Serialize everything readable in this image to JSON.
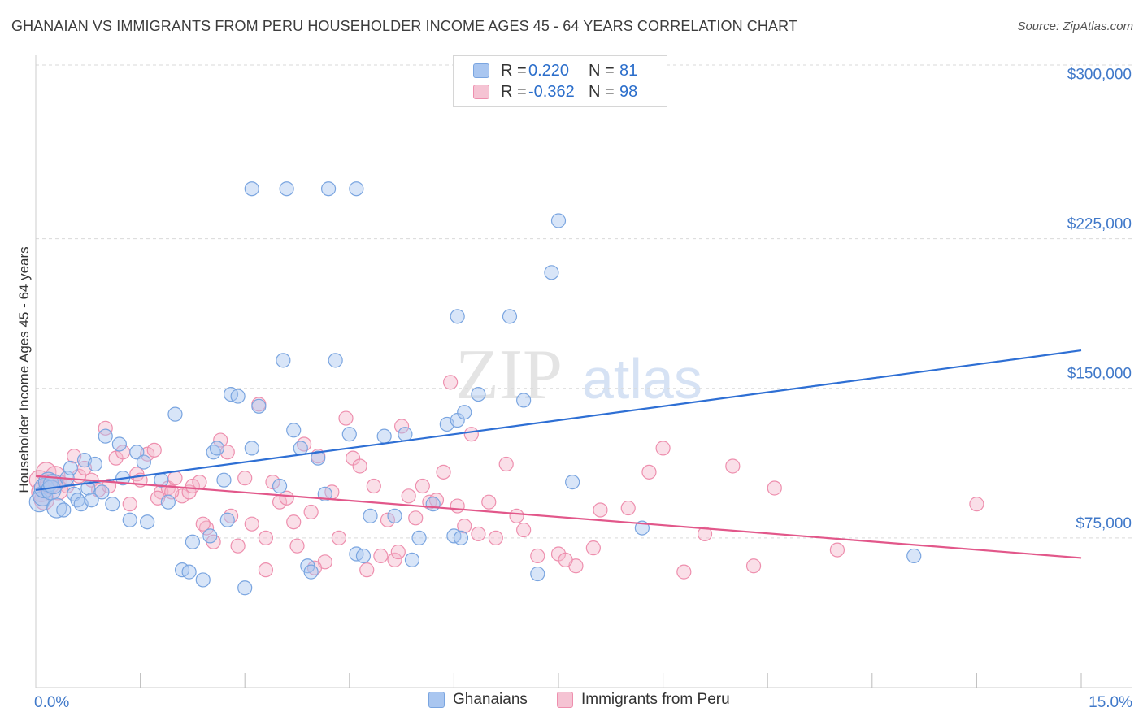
{
  "title": "GHANAIAN VS IMMIGRANTS FROM PERU HOUSEHOLDER INCOME AGES 45 - 64 YEARS CORRELATION CHART",
  "source": "Source: ZipAtlas.com",
  "watermark": {
    "zip": "ZIP",
    "atlas": "atlas"
  },
  "colors": {
    "blue_fill": "#a9c6f0",
    "blue_stroke": "#7aa5e0",
    "blue_line": "#2e6fd4",
    "pink_fill": "#f5b8cc",
    "pink_stroke": "#ee8fae",
    "pink_line": "#e2578a",
    "axis_text": "#3f78c9",
    "grid": "#d9d9d9"
  },
  "legend": {
    "rows": [
      {
        "r_label": "R =",
        "r_value": "0.220",
        "n_label": "N =",
        "n_value": "81"
      },
      {
        "r_label": "R =",
        "r_value": "-0.362",
        "n_label": "N =",
        "n_value": "98"
      }
    ]
  },
  "bottom_legend": {
    "series1": "Ghanaians",
    "series2": "Immigrants from Peru"
  },
  "chart_data": {
    "type": "scatter",
    "title": "GHANAIAN VS IMMIGRANTS FROM PERU HOUSEHOLDER INCOME AGES 45 - 64 YEARS CORRELATION CHART",
    "xlabel": "",
    "ylabel": "Householder Income Ages 45 - 64 years",
    "xlim": [
      0,
      15
    ],
    "ylim": [
      0,
      312000
    ],
    "x_tick_labels": [
      "0.0%",
      "15.0%"
    ],
    "y_ticks": [
      75000,
      150000,
      225000,
      300000
    ],
    "y_tick_labels": [
      "$75,000",
      "$150,000",
      "$225,000",
      "$300,000"
    ],
    "grid": "horizontal dashed",
    "legend_placement": "top-center",
    "series": [
      {
        "name": "Ghanaians",
        "color": "#a9c6f0",
        "trend": {
          "x": [
            0.0,
            15.0
          ],
          "y": [
            99000,
            169000
          ]
        },
        "points": [
          [
            0.05,
            93000
          ],
          [
            0.1,
            96000
          ],
          [
            0.12,
            100000
          ],
          [
            0.18,
            103000
          ],
          [
            0.22,
            99000
          ],
          [
            0.3,
            90000
          ],
          [
            0.25,
            102000
          ],
          [
            0.45,
            105000
          ],
          [
            0.5,
            110000
          ],
          [
            0.55,
            97000
          ],
          [
            0.6,
            94000
          ],
          [
            0.65,
            92000
          ],
          [
            0.7,
            114000
          ],
          [
            0.75,
            100000
          ],
          [
            0.85,
            112000
          ],
          [
            0.95,
            98000
          ],
          [
            1.0,
            126000
          ],
          [
            1.1,
            92000
          ],
          [
            1.2,
            122000
          ],
          [
            1.25,
            105000
          ],
          [
            1.35,
            84000
          ],
          [
            1.45,
            118000
          ],
          [
            1.55,
            113000
          ],
          [
            1.6,
            83000
          ],
          [
            1.8,
            104000
          ],
          [
            1.9,
            93000
          ],
          [
            2.0,
            137000
          ],
          [
            2.1,
            59000
          ],
          [
            2.2,
            58000
          ],
          [
            2.25,
            73000
          ],
          [
            2.4,
            54000
          ],
          [
            2.5,
            76000
          ],
          [
            2.55,
            118000
          ],
          [
            2.6,
            120000
          ],
          [
            2.7,
            104000
          ],
          [
            2.75,
            84000
          ],
          [
            2.8,
            147000
          ],
          [
            2.9,
            146000
          ],
          [
            3.0,
            50000
          ],
          [
            3.1,
            120000
          ],
          [
            3.2,
            141000
          ],
          [
            3.5,
            101000
          ],
          [
            3.7,
            129000
          ],
          [
            3.8,
            120000
          ],
          [
            3.9,
            61000
          ],
          [
            3.95,
            58000
          ],
          [
            4.05,
            115000
          ],
          [
            4.15,
            97000
          ],
          [
            4.5,
            127000
          ],
          [
            4.6,
            67000
          ],
          [
            4.7,
            66000
          ],
          [
            4.8,
            86000
          ],
          [
            5.0,
            126000
          ],
          [
            5.15,
            86000
          ],
          [
            5.3,
            127000
          ],
          [
            5.4,
            64000
          ],
          [
            5.5,
            75000
          ],
          [
            5.7,
            92000
          ],
          [
            5.9,
            132000
          ],
          [
            6.0,
            76000
          ],
          [
            6.05,
            134000
          ],
          [
            6.1,
            75000
          ],
          [
            6.15,
            138000
          ],
          [
            6.35,
            147000
          ],
          [
            7.0,
            144000
          ],
          [
            7.2,
            57000
          ],
          [
            7.5,
            234000
          ],
          [
            7.7,
            103000
          ],
          [
            3.1,
            250000
          ],
          [
            3.6,
            250000
          ],
          [
            4.2,
            250000
          ],
          [
            4.6,
            250000
          ],
          [
            7.4,
            208000
          ],
          [
            6.8,
            186000
          ],
          [
            6.05,
            186000
          ],
          [
            4.3,
            164000
          ],
          [
            8.7,
            80000
          ],
          [
            3.55,
            164000
          ],
          [
            12.6,
            66000
          ],
          [
            0.4,
            89000
          ],
          [
            0.8,
            94000
          ]
        ]
      },
      {
        "name": "Immigrants from Peru",
        "color": "#f5b8cc",
        "trend": {
          "x": [
            0.0,
            15.0
          ],
          "y": [
            106000,
            65000
          ]
        },
        "points": [
          [
            0.05,
            104000
          ],
          [
            0.08,
            98000
          ],
          [
            0.12,
            94000
          ],
          [
            0.15,
            108000
          ],
          [
            0.2,
            102000
          ],
          [
            0.28,
            106000
          ],
          [
            0.35,
            103000
          ],
          [
            0.45,
            101000
          ],
          [
            0.55,
            116000
          ],
          [
            0.62,
            106000
          ],
          [
            0.7,
            110000
          ],
          [
            0.8,
            104000
          ],
          [
            0.9,
            99000
          ],
          [
            1.0,
            130000
          ],
          [
            1.05,
            101000
          ],
          [
            1.15,
            115000
          ],
          [
            1.25,
            118000
          ],
          [
            1.35,
            92000
          ],
          [
            1.45,
            107000
          ],
          [
            1.5,
            104000
          ],
          [
            1.6,
            117000
          ],
          [
            1.7,
            119000
          ],
          [
            1.8,
            98000
          ],
          [
            1.9,
            100000
          ],
          [
            2.0,
            105000
          ],
          [
            2.1,
            96000
          ],
          [
            2.2,
            98000
          ],
          [
            2.25,
            101000
          ],
          [
            2.35,
            103000
          ],
          [
            2.45,
            80000
          ],
          [
            2.55,
            73000
          ],
          [
            2.65,
            124000
          ],
          [
            2.75,
            118000
          ],
          [
            2.8,
            86000
          ],
          [
            2.9,
            71000
          ],
          [
            3.0,
            105000
          ],
          [
            3.1,
            82000
          ],
          [
            3.2,
            142000
          ],
          [
            3.3,
            75000
          ],
          [
            3.4,
            103000
          ],
          [
            3.5,
            93000
          ],
          [
            3.6,
            95000
          ],
          [
            3.7,
            83000
          ],
          [
            3.75,
            71000
          ],
          [
            3.85,
            122000
          ],
          [
            3.95,
            88000
          ],
          [
            4.05,
            116000
          ],
          [
            4.15,
            63000
          ],
          [
            4.25,
            98000
          ],
          [
            4.35,
            75000
          ],
          [
            4.45,
            135000
          ],
          [
            4.55,
            115000
          ],
          [
            4.65,
            111000
          ],
          [
            4.75,
            59000
          ],
          [
            4.85,
            101000
          ],
          [
            4.95,
            66000
          ],
          [
            5.05,
            84000
          ],
          [
            5.15,
            64000
          ],
          [
            5.25,
            131000
          ],
          [
            5.35,
            96000
          ],
          [
            5.45,
            85000
          ],
          [
            5.55,
            101000
          ],
          [
            5.65,
            93000
          ],
          [
            5.75,
            94000
          ],
          [
            5.85,
            108000
          ],
          [
            5.95,
            153000
          ],
          [
            6.05,
            91000
          ],
          [
            6.15,
            81000
          ],
          [
            6.25,
            127000
          ],
          [
            6.35,
            77000
          ],
          [
            6.5,
            93000
          ],
          [
            6.6,
            75000
          ],
          [
            6.75,
            112000
          ],
          [
            6.9,
            86000
          ],
          [
            7.0,
            79000
          ],
          [
            7.2,
            66000
          ],
          [
            7.5,
            67000
          ],
          [
            7.75,
            61000
          ],
          [
            8.0,
            70000
          ],
          [
            8.1,
            89000
          ],
          [
            8.5,
            90000
          ],
          [
            8.8,
            108000
          ],
          [
            9.0,
            120000
          ],
          [
            9.3,
            58000
          ],
          [
            9.6,
            77000
          ],
          [
            10.0,
            111000
          ],
          [
            10.3,
            61000
          ],
          [
            10.6,
            100000
          ],
          [
            11.5,
            69000
          ],
          [
            13.5,
            92000
          ],
          [
            4.0,
            60000
          ],
          [
            3.3,
            59000
          ],
          [
            2.4,
            82000
          ],
          [
            1.95,
            98000
          ],
          [
            1.75,
            95000
          ],
          [
            0.32,
            99000
          ],
          [
            5.2,
            68000
          ],
          [
            7.6,
            64000
          ]
        ]
      }
    ]
  }
}
